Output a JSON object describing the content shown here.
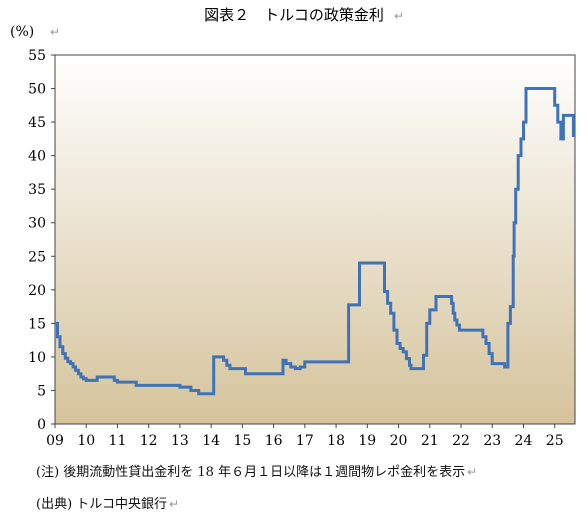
{
  "chart_data": {
    "type": "line",
    "title": "図表２　トルコの政策金利",
    "ylabel": "(%)",
    "xlabel": "",
    "ylim": [
      0,
      55
    ],
    "xlim": [
      2009.0,
      2025.65
    ],
    "yticks": [
      0,
      5,
      10,
      15,
      20,
      25,
      30,
      35,
      40,
      45,
      50,
      55
    ],
    "xticks": [
      "09",
      "10",
      "11",
      "12",
      "13",
      "14",
      "15",
      "16",
      "17",
      "18",
      "19",
      "20",
      "21",
      "22",
      "23",
      "24",
      "25"
    ],
    "grid": false,
    "line_color": "#3f73b6",
    "background_gradient": [
      "#ffffff",
      "#d5c39b"
    ],
    "series": [
      {
        "name": "",
        "step": true,
        "x": [
          2009.0,
          2009.08,
          2009.16,
          2009.25,
          2009.33,
          2009.41,
          2009.5,
          2009.58,
          2009.66,
          2009.75,
          2009.83,
          2009.91,
          2010.0,
          2010.35,
          2010.9,
          2011.0,
          2011.6,
          2013.0,
          2013.35,
          2013.6,
          2014.08,
          2014.4,
          2014.5,
          2014.6,
          2015.1,
          2016.3,
          2016.4,
          2016.55,
          2016.7,
          2016.85,
          2017.0,
          2018.4,
          2018.5,
          2018.75,
          2019.55,
          2019.65,
          2019.75,
          2019.85,
          2019.95,
          2020.05,
          2020.15,
          2020.25,
          2020.35,
          2020.4,
          2020.8,
          2020.9,
          2021.0,
          2021.2,
          2021.7,
          2021.75,
          2021.8,
          2021.87,
          2021.95,
          2022.7,
          2022.8,
          2022.9,
          2023.0,
          2023.4,
          2023.5,
          2023.58,
          2023.67,
          2023.7,
          2023.75,
          2023.83,
          2023.92,
          2024.0,
          2024.08,
          2024.25,
          2025.0,
          2025.1,
          2025.2,
          2025.28,
          2025.35,
          2025.6
        ],
        "y": [
          15.0,
          13.0,
          11.5,
          10.5,
          9.8,
          9.3,
          9.0,
          8.5,
          8.0,
          7.5,
          7.0,
          6.75,
          6.5,
          7.0,
          6.5,
          6.25,
          5.75,
          5.5,
          5.0,
          4.5,
          10.0,
          9.5,
          8.75,
          8.25,
          7.5,
          9.5,
          9.0,
          8.5,
          8.25,
          8.5,
          9.25,
          17.75,
          17.75,
          24.0,
          19.75,
          18.0,
          16.5,
          14.0,
          12.0,
          11.25,
          10.75,
          9.75,
          8.75,
          8.25,
          10.25,
          15.0,
          17.0,
          19.0,
          18.0,
          16.5,
          15.5,
          14.75,
          14.0,
          13.0,
          12.0,
          10.5,
          9.0,
          8.5,
          15.0,
          17.5,
          25.0,
          30.0,
          35.0,
          40.0,
          42.5,
          45.0,
          50.0,
          50.0,
          47.5,
          45.0,
          42.5,
          46.0,
          46.0,
          43.0
        ]
      }
    ]
  },
  "notes": {
    "note1": "(注) 後期流動性貸出金利を 18 年６月１日以降は１週間物レポ金利を表示",
    "note2": "(出典) トルコ中央銀行"
  },
  "marks": {
    "return_symbol": "↵"
  }
}
